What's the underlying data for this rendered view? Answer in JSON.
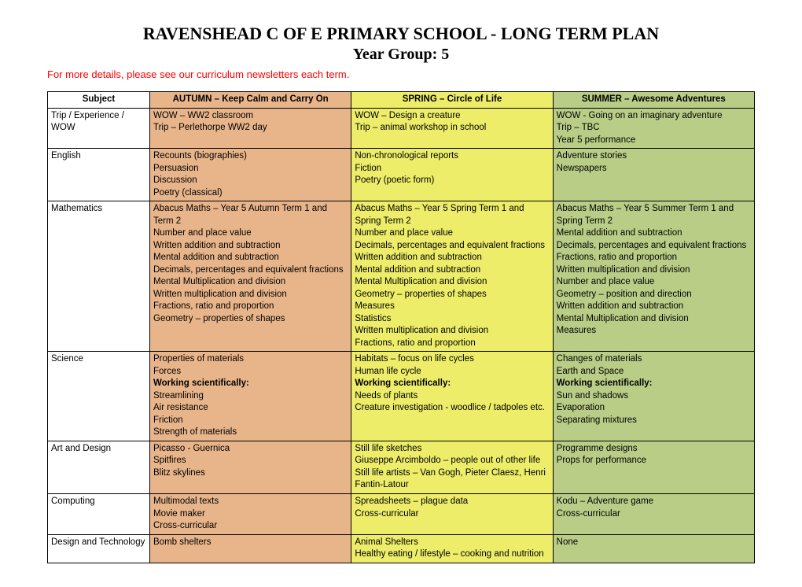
{
  "title": "RAVENSHEAD C OF E PRIMARY SCHOOL - LONG TERM PLAN",
  "subtitle": "Year Group: 5",
  "note": "For more details, please see our curriculum newsletters each term.",
  "colors": {
    "autumn": "#e8b58b",
    "spring": "#eded6a",
    "summer": "#b9cd87",
    "note": "#ff0000",
    "border": "#000000",
    "background": "#ffffff"
  },
  "headers": {
    "subject": "Subject",
    "autumn": "AUTUMN – Keep Calm and Carry On",
    "spring": "SPRING – Circle of Life",
    "summer": "SUMMER – Awesome Adventures"
  },
  "rows": [
    {
      "subject": "Trip / Experience / WOW",
      "autumn": [
        {
          "t": "WOW – WW2 classroom"
        },
        {
          "t": "Trip – Perlethorpe WW2 day"
        }
      ],
      "spring": [
        {
          "t": "WOW – Design a creature"
        },
        {
          "t": "Trip – animal workshop in school"
        }
      ],
      "summer": [
        {
          "t": "WOW - Going on an imaginary adventure"
        },
        {
          "t": "Trip – TBC"
        },
        {
          "t": "Year 5 performance"
        }
      ]
    },
    {
      "subject": "English",
      "autumn": [
        {
          "t": "Recounts (biographies)"
        },
        {
          "t": "Persuasion"
        },
        {
          "t": "Discussion"
        },
        {
          "t": "Poetry (classical)"
        }
      ],
      "spring": [
        {
          "t": "Non-chronological reports"
        },
        {
          "t": "Fiction"
        },
        {
          "t": "Poetry (poetic form)"
        }
      ],
      "summer": [
        {
          "t": "Adventure stories"
        },
        {
          "t": "Newspapers"
        }
      ]
    },
    {
      "subject": "Mathematics",
      "autumn": [
        {
          "t": "Abacus Maths – Year 5 Autumn Term 1 and Term 2"
        },
        {
          "t": "Number and place value"
        },
        {
          "t": "Written addition and subtraction"
        },
        {
          "t": "Mental addition and subtraction"
        },
        {
          "t": "Decimals, percentages and equivalent fractions"
        },
        {
          "t": "Mental Multiplication and division"
        },
        {
          "t": "Written multiplication and division"
        },
        {
          "t": "Fractions, ratio and proportion"
        },
        {
          "t": "Geometry – properties of shapes"
        }
      ],
      "spring": [
        {
          "t": "Abacus Maths – Year 5 Spring Term 1 and Spring Term 2"
        },
        {
          "t": "Number and place value"
        },
        {
          "t": "Decimals, percentages and equivalent fractions"
        },
        {
          "t": "Written addition and subtraction"
        },
        {
          "t": "Mental addition and subtraction"
        },
        {
          "t": "Mental Multiplication and division"
        },
        {
          "t": "Geometry – properties of shapes"
        },
        {
          "t": "Measures"
        },
        {
          "t": "Statistics"
        },
        {
          "t": "Written multiplication and division"
        },
        {
          "t": "Fractions, ratio and proportion"
        }
      ],
      "summer": [
        {
          "t": "Abacus Maths – Year 5 Summer Term 1 and Spring Term 2"
        },
        {
          "t": "Mental addition and subtraction"
        },
        {
          "t": "Decimals, percentages and equivalent fractions"
        },
        {
          "t": "Fractions, ratio and proportion"
        },
        {
          "t": "Written multiplication and division"
        },
        {
          "t": "Number and place value"
        },
        {
          "t": "Geometry – position and direction"
        },
        {
          "t": "Written addition and subtraction"
        },
        {
          "t": "Mental Multiplication and division"
        },
        {
          "t": "Measures"
        }
      ]
    },
    {
      "subject": "Science",
      "autumn": [
        {
          "t": "Properties of materials"
        },
        {
          "t": "Forces"
        },
        {
          "t": "Working scientifically:",
          "bold": true
        },
        {
          "t": "Streamlining"
        },
        {
          "t": "Air resistance"
        },
        {
          "t": "Friction"
        },
        {
          "t": "Strength of materials"
        }
      ],
      "spring": [
        {
          "t": "Habitats – focus on life cycles"
        },
        {
          "t": "Human life cycle"
        },
        {
          "t": "Working scientifically:",
          "bold": true
        },
        {
          "t": "Needs of plants"
        },
        {
          "t": "Creature investigation - woodlice / tadpoles etc."
        }
      ],
      "summer": [
        {
          "t": "Changes of materials"
        },
        {
          "t": "Earth and Space"
        },
        {
          "t": "Working scientifically:",
          "bold": true
        },
        {
          "t": "Sun and shadows"
        },
        {
          "t": "Evaporation"
        },
        {
          "t": "Separating mixtures"
        }
      ]
    },
    {
      "subject": "Art and Design",
      "autumn": [
        {
          "t": "Picasso - Guernica"
        },
        {
          "t": "Spitfires"
        },
        {
          "t": "Blitz skylines"
        }
      ],
      "spring": [
        {
          "t": "Still life sketches"
        },
        {
          "t": "Giuseppe Arcimboldo – people out of other life"
        },
        {
          "t": "Still life artists – Van Gogh, Pieter Claesz, Henri Fantin-Latour"
        }
      ],
      "summer": [
        {
          "t": "Programme designs"
        },
        {
          "t": "Props for performance"
        }
      ]
    },
    {
      "subject": "Computing",
      "autumn": [
        {
          "t": "Multimodal texts"
        },
        {
          "t": "Movie maker"
        },
        {
          "t": "Cross-curricular"
        }
      ],
      "spring": [
        {
          "t": "Spreadsheets – plague data"
        },
        {
          "t": "Cross-curricular"
        }
      ],
      "summer": [
        {
          "t": "Kodu – Adventure game"
        },
        {
          "t": "Cross-curricular"
        }
      ]
    },
    {
      "subject": "Design and Technology",
      "autumn": [
        {
          "t": "Bomb shelters"
        }
      ],
      "spring": [
        {
          "t": "Animal Shelters"
        },
        {
          "t": "Healthy eating / lifestyle – cooking and nutrition"
        }
      ],
      "summer": [
        {
          "t": "None"
        }
      ]
    }
  ]
}
